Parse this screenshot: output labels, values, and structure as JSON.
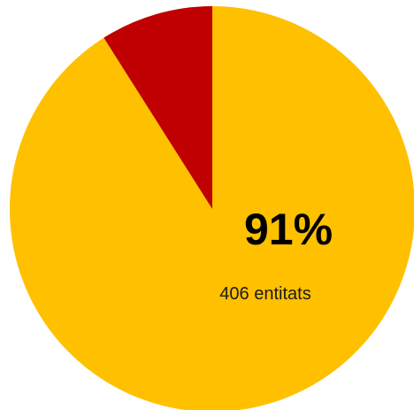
{
  "chart_data": {
    "type": "pie",
    "slices": [
      {
        "value": 91,
        "color": "#FFC000"
      },
      {
        "value": 9,
        "color": "#C00000"
      }
    ],
    "labels": {
      "percent": "91%",
      "count": "406 entitats"
    }
  }
}
